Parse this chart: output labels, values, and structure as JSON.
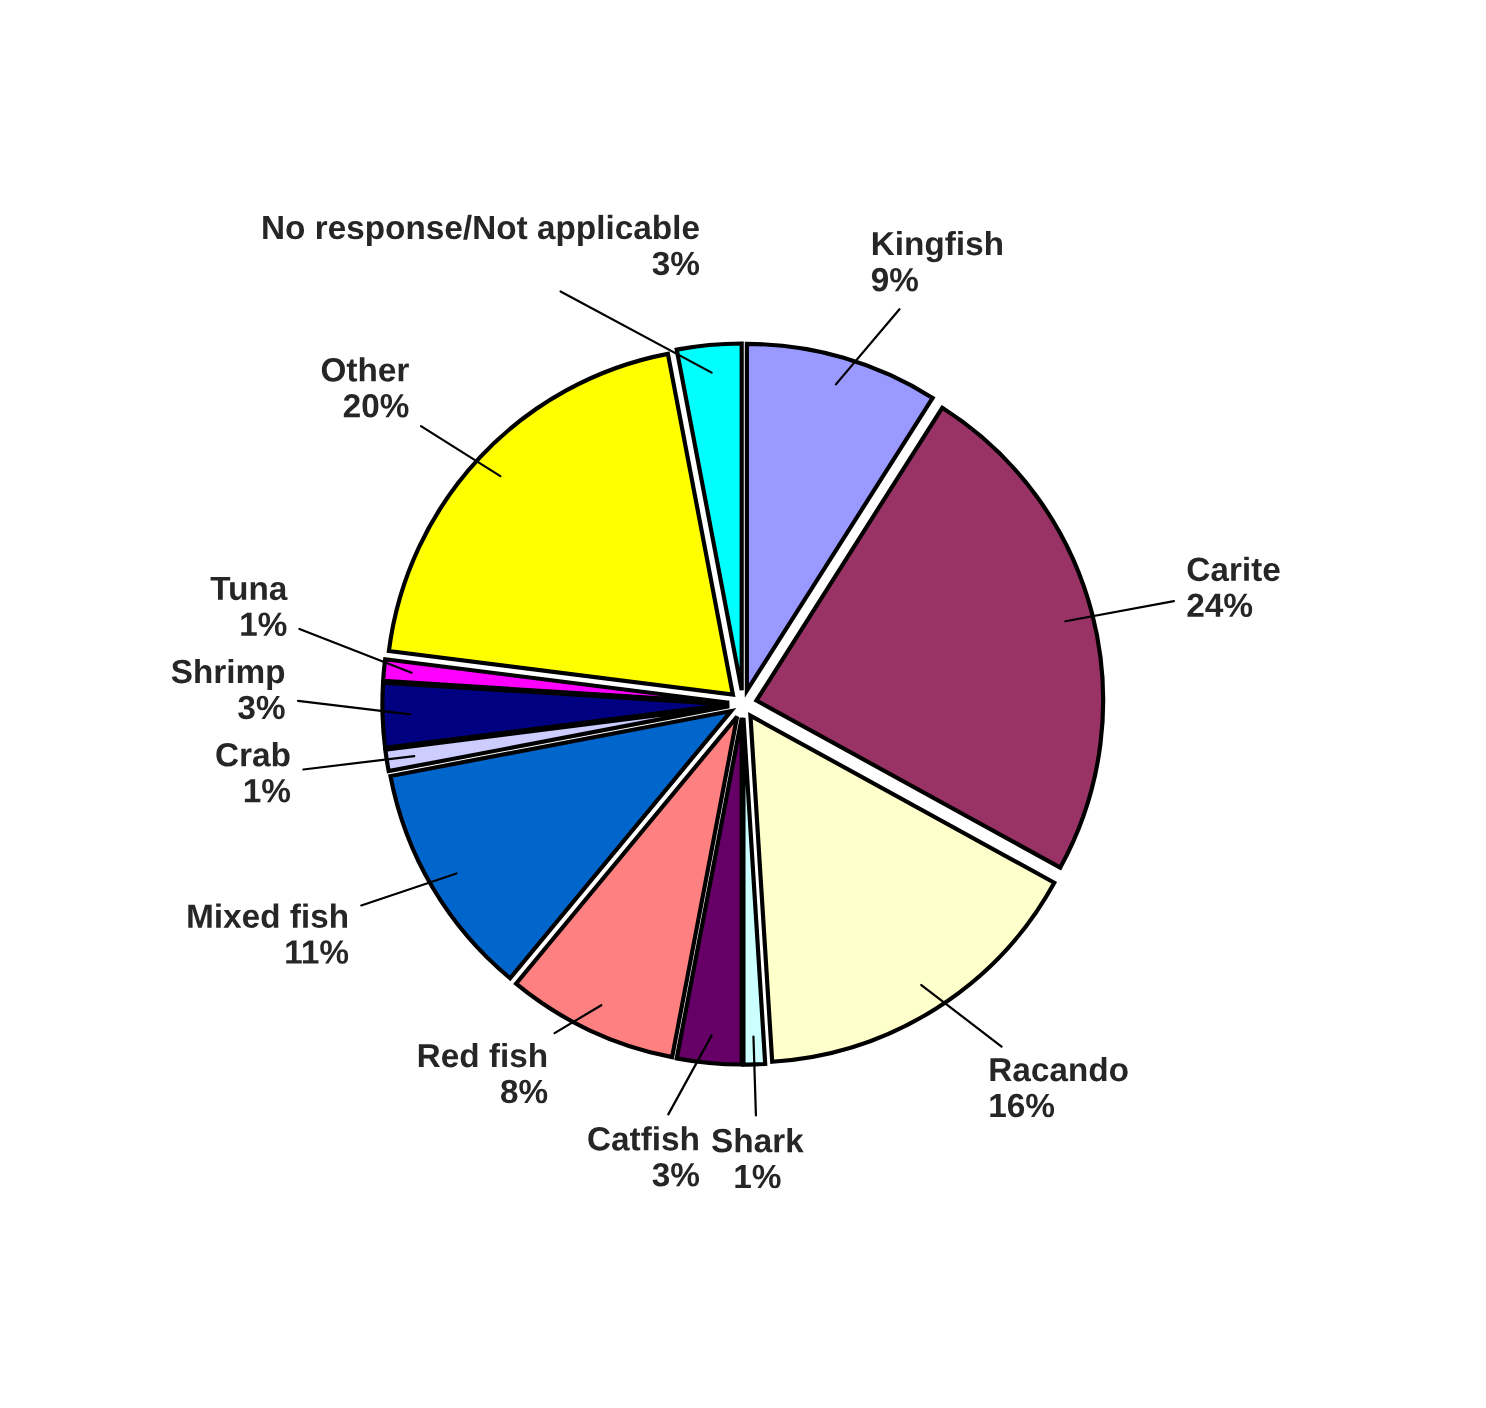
{
  "chart_data": {
    "type": "pie",
    "categories": [
      "Kingfish",
      "Carite",
      "Racando",
      "Shark",
      "Catfish",
      "Red fish",
      "Mixed fish",
      "Crab",
      "Shrimp",
      "Tuna",
      "Other",
      "No response/Not applicable"
    ],
    "values": [
      9,
      24,
      16,
      1,
      3,
      8,
      11,
      1,
      3,
      1,
      20,
      3
    ],
    "value_labels": [
      "9%",
      "24%",
      "16%",
      "1%",
      "3%",
      "8%",
      "11%",
      "1%",
      "3%",
      "1%",
      "20%",
      "3%"
    ],
    "colors": [
      "#9999ff",
      "#993366",
      "#ffffcc",
      "#ccffff",
      "#660066",
      "#ff8080",
      "#0066cc",
      "#ccccff",
      "#000080",
      "#ff00ff",
      "#ffff00",
      "#00ffff"
    ],
    "legend": false
  }
}
